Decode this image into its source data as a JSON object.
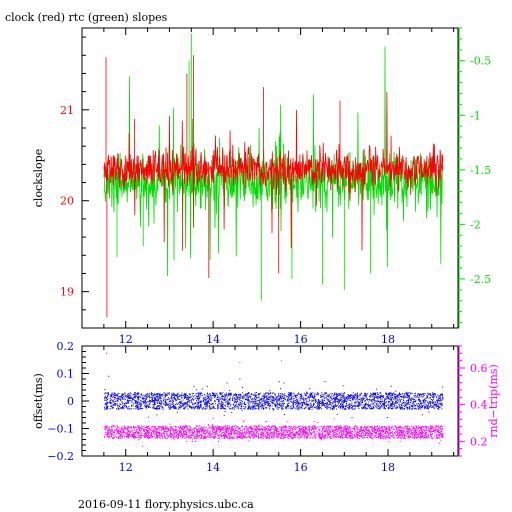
{
  "chart_data": [
    {
      "type": "line",
      "title": "clock (red) rtc (green) slopes",
      "xlabel": "",
      "ylabel": "clockslope",
      "xlim": [
        11.0,
        19.6
      ],
      "ylim": [
        18.6,
        21.9
      ],
      "y2lim": [
        -2.95,
        -0.2
      ],
      "x_ticks": [
        12,
        14,
        16,
        18
      ],
      "y_ticks": [
        19,
        20,
        21
      ],
      "y2_ticks": [
        -2.5,
        -2,
        -1.5,
        -1,
        -0.5
      ],
      "grid": false,
      "colors": {
        "clock": "#ff0000",
        "rtc": "#00dd00",
        "x_axis": "#0000ff",
        "y_left": "#ff0000",
        "y_right": "#00dd00",
        "frame": "#000000"
      },
      "series": [
        {
          "name": "clock",
          "axis": "left",
          "x_range": [
            11.5,
            19.25
          ],
          "baseline": 20.35,
          "band": 0.25,
          "spikes": [
            [
              11.55,
              21.58
            ],
            [
              11.57,
              18.72
            ],
            [
              13.4,
              21.4
            ],
            [
              13.3,
              19.45
            ],
            [
              13.9,
              19.15
            ],
            [
              15.15,
              21.25
            ],
            [
              15.5,
              19.2
            ],
            [
              16.9,
              21.1
            ],
            [
              13.55,
              21.6
            ],
            [
              12.2,
              20.9
            ]
          ]
        },
        {
          "name": "rtc",
          "axis": "right",
          "x_range": [
            11.5,
            19.25
          ],
          "baseline": -1.6,
          "band": 0.3,
          "spikes": [
            [
              13.5,
              -0.25
            ],
            [
              13.45,
              -0.5
            ],
            [
              15.1,
              -2.7
            ],
            [
              16.5,
              -2.55
            ],
            [
              17.0,
              -2.6
            ],
            [
              17.6,
              -2.45
            ],
            [
              15.8,
              -2.5
            ],
            [
              12.4,
              -2.2
            ],
            [
              11.8,
              -2.3
            ]
          ]
        }
      ]
    },
    {
      "type": "scatter",
      "title": "",
      "xlabel": "",
      "ylabel": "offset(ms)",
      "y2label": "rnd−trip(ms)",
      "xlim": [
        11.0,
        19.6
      ],
      "ylim": [
        -0.2,
        0.2
      ],
      "y2lim": [
        0.12,
        0.72
      ],
      "x_ticks": [
        12,
        14,
        16,
        18
      ],
      "y_ticks": [
        -0.2,
        -0.1,
        0,
        0.1,
        0.2
      ],
      "y_tick_labels": [
        "−0.2",
        "−0.1",
        "0",
        "0.1",
        "0.2"
      ],
      "y2_ticks": [
        0.2,
        0.4,
        0.6
      ],
      "grid": false,
      "colors": {
        "offset": "#0000ff",
        "rtt": "#ff00ff",
        "x_axis": "#0000ff",
        "y_left": "#0000ff",
        "y_right": "#ff00ff"
      },
      "series": [
        {
          "name": "offset",
          "axis": "left",
          "x_range": [
            11.5,
            19.25
          ],
          "center": 0.0,
          "band": 0.03,
          "outliers": [
            [
              11.6,
              0.09
            ],
            [
              14.6,
              0.08
            ],
            [
              15.5,
              0.07
            ],
            [
              16.2,
              0.045
            ]
          ]
        },
        {
          "name": "rtt",
          "axis": "right",
          "x_range": [
            11.5,
            19.25
          ],
          "center": 0.25,
          "band": 0.035,
          "outliers": [
            [
              11.55,
              0.68
            ],
            [
              15.55,
              0.64
            ],
            [
              14.6,
              0.63
            ],
            [
              11.7,
              0.44
            ]
          ]
        }
      ]
    }
  ],
  "footer": "2016-09-11 flory.physics.ubc.ca"
}
